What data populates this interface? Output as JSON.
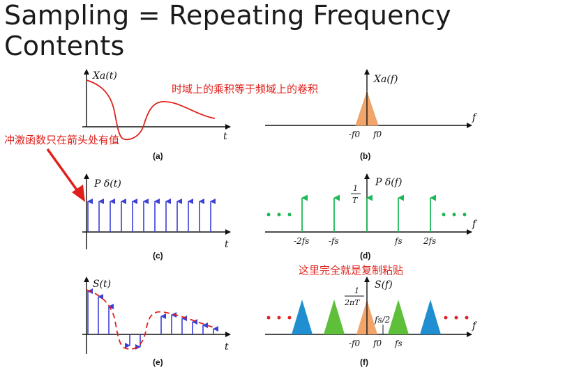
{
  "title": "Sampling = Repeating Frequency Contents",
  "notes": {
    "time_freq": "时域上的乘积等于频域上的卷积",
    "impulse": "冲激函数只在箭头处有值",
    "copy": "这里完全就是复制粘贴"
  },
  "panels": {
    "a": {
      "ylabel": "Xa(t)",
      "xlabel": "t",
      "caption": "(a)"
    },
    "b": {
      "ylabel": "Xa(f)",
      "xlabel": "f",
      "caption": "(b)",
      "ticks": [
        "-f0",
        "f0"
      ]
    },
    "c": {
      "ylabel": "P δ(t)",
      "xlabel": "t",
      "caption": "(c)"
    },
    "d": {
      "ylabel": "P δ(f)",
      "xlabel": "f",
      "caption": "(d)",
      "amp_num": "1",
      "amp_den": "T",
      "ticks": [
        "-2fs",
        "-fs",
        "fs",
        "2fs"
      ]
    },
    "e": {
      "ylabel": "S(t)",
      "xlabel": "t",
      "caption": "(e)"
    },
    "f": {
      "ylabel": "S(f)",
      "xlabel": "f",
      "caption": "(f)",
      "amp_num": "1",
      "amp_den": "2πT",
      "half": "fs/2",
      "ticks": [
        "-f0",
        "f0",
        "fs"
      ]
    }
  },
  "colors": {
    "signal": "#e0201c",
    "impulse": "#3b3fd6",
    "spec_green": "#1db954",
    "spec_orange": "#f2a56b",
    "spec_blue": "#1f8fd1",
    "spec_green_fill": "#5dbf3a"
  }
}
